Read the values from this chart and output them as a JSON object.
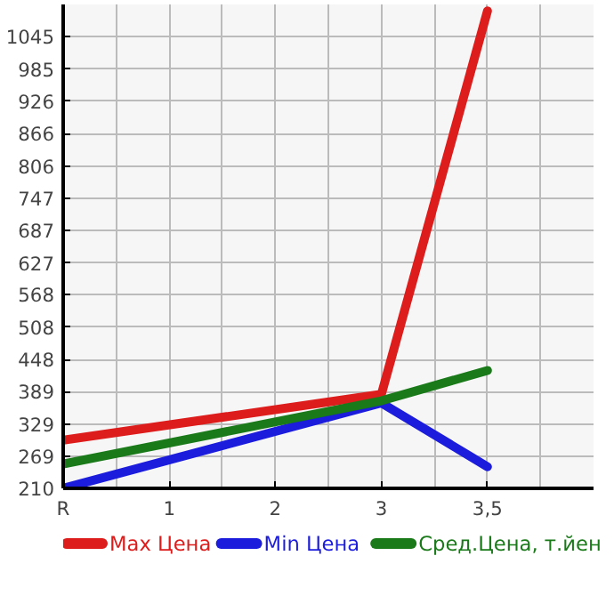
{
  "chart_data": {
    "type": "line",
    "categories": [
      "R",
      "1",
      "2",
      "3",
      "3,5"
    ],
    "series": [
      {
        "name": "Max Цена",
        "color": "#dd1c1c",
        "values": [
          299,
          null,
          null,
          384,
          1093
        ]
      },
      {
        "name": "Min Цена",
        "color": "#1c1cdd",
        "values": [
          210,
          null,
          null,
          368,
          250
        ]
      },
      {
        "name": "Сред.Цена, т.йен",
        "color": "#1a7a1a",
        "values": [
          255,
          null,
          null,
          372,
          428
        ]
      }
    ],
    "ylim": [
      210,
      1105
    ],
    "yticks": [
      210,
      269,
      329,
      389,
      448,
      508,
      568,
      627,
      687,
      747,
      806,
      866,
      926,
      985,
      1045
    ],
    "grid": true,
    "legend": "bottom",
    "marker": "none",
    "line_style": "solid"
  }
}
